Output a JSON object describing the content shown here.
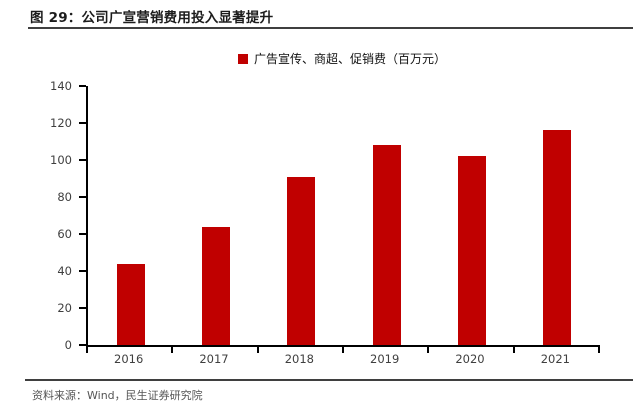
{
  "header": {
    "title": "图 29：公司广宣营销费用投入显著提升"
  },
  "chart_data": {
    "type": "bar",
    "title": "图 29：公司广宣营销费用投入显著提升",
    "legend": "广告宣传、商超、促销费（百万元）",
    "legend_position": "top-center",
    "categories": [
      "2016",
      "2017",
      "2018",
      "2019",
      "2020",
      "2021"
    ],
    "values": [
      44,
      64,
      91,
      108,
      102,
      116
    ],
    "xlabel": "",
    "ylabel": "",
    "ylim": [
      0,
      140
    ],
    "y_tick_step": 20,
    "grid": false,
    "bar_color": "#c00000"
  },
  "footer": {
    "source": "资料来源：Wind，民生证券研究院"
  }
}
